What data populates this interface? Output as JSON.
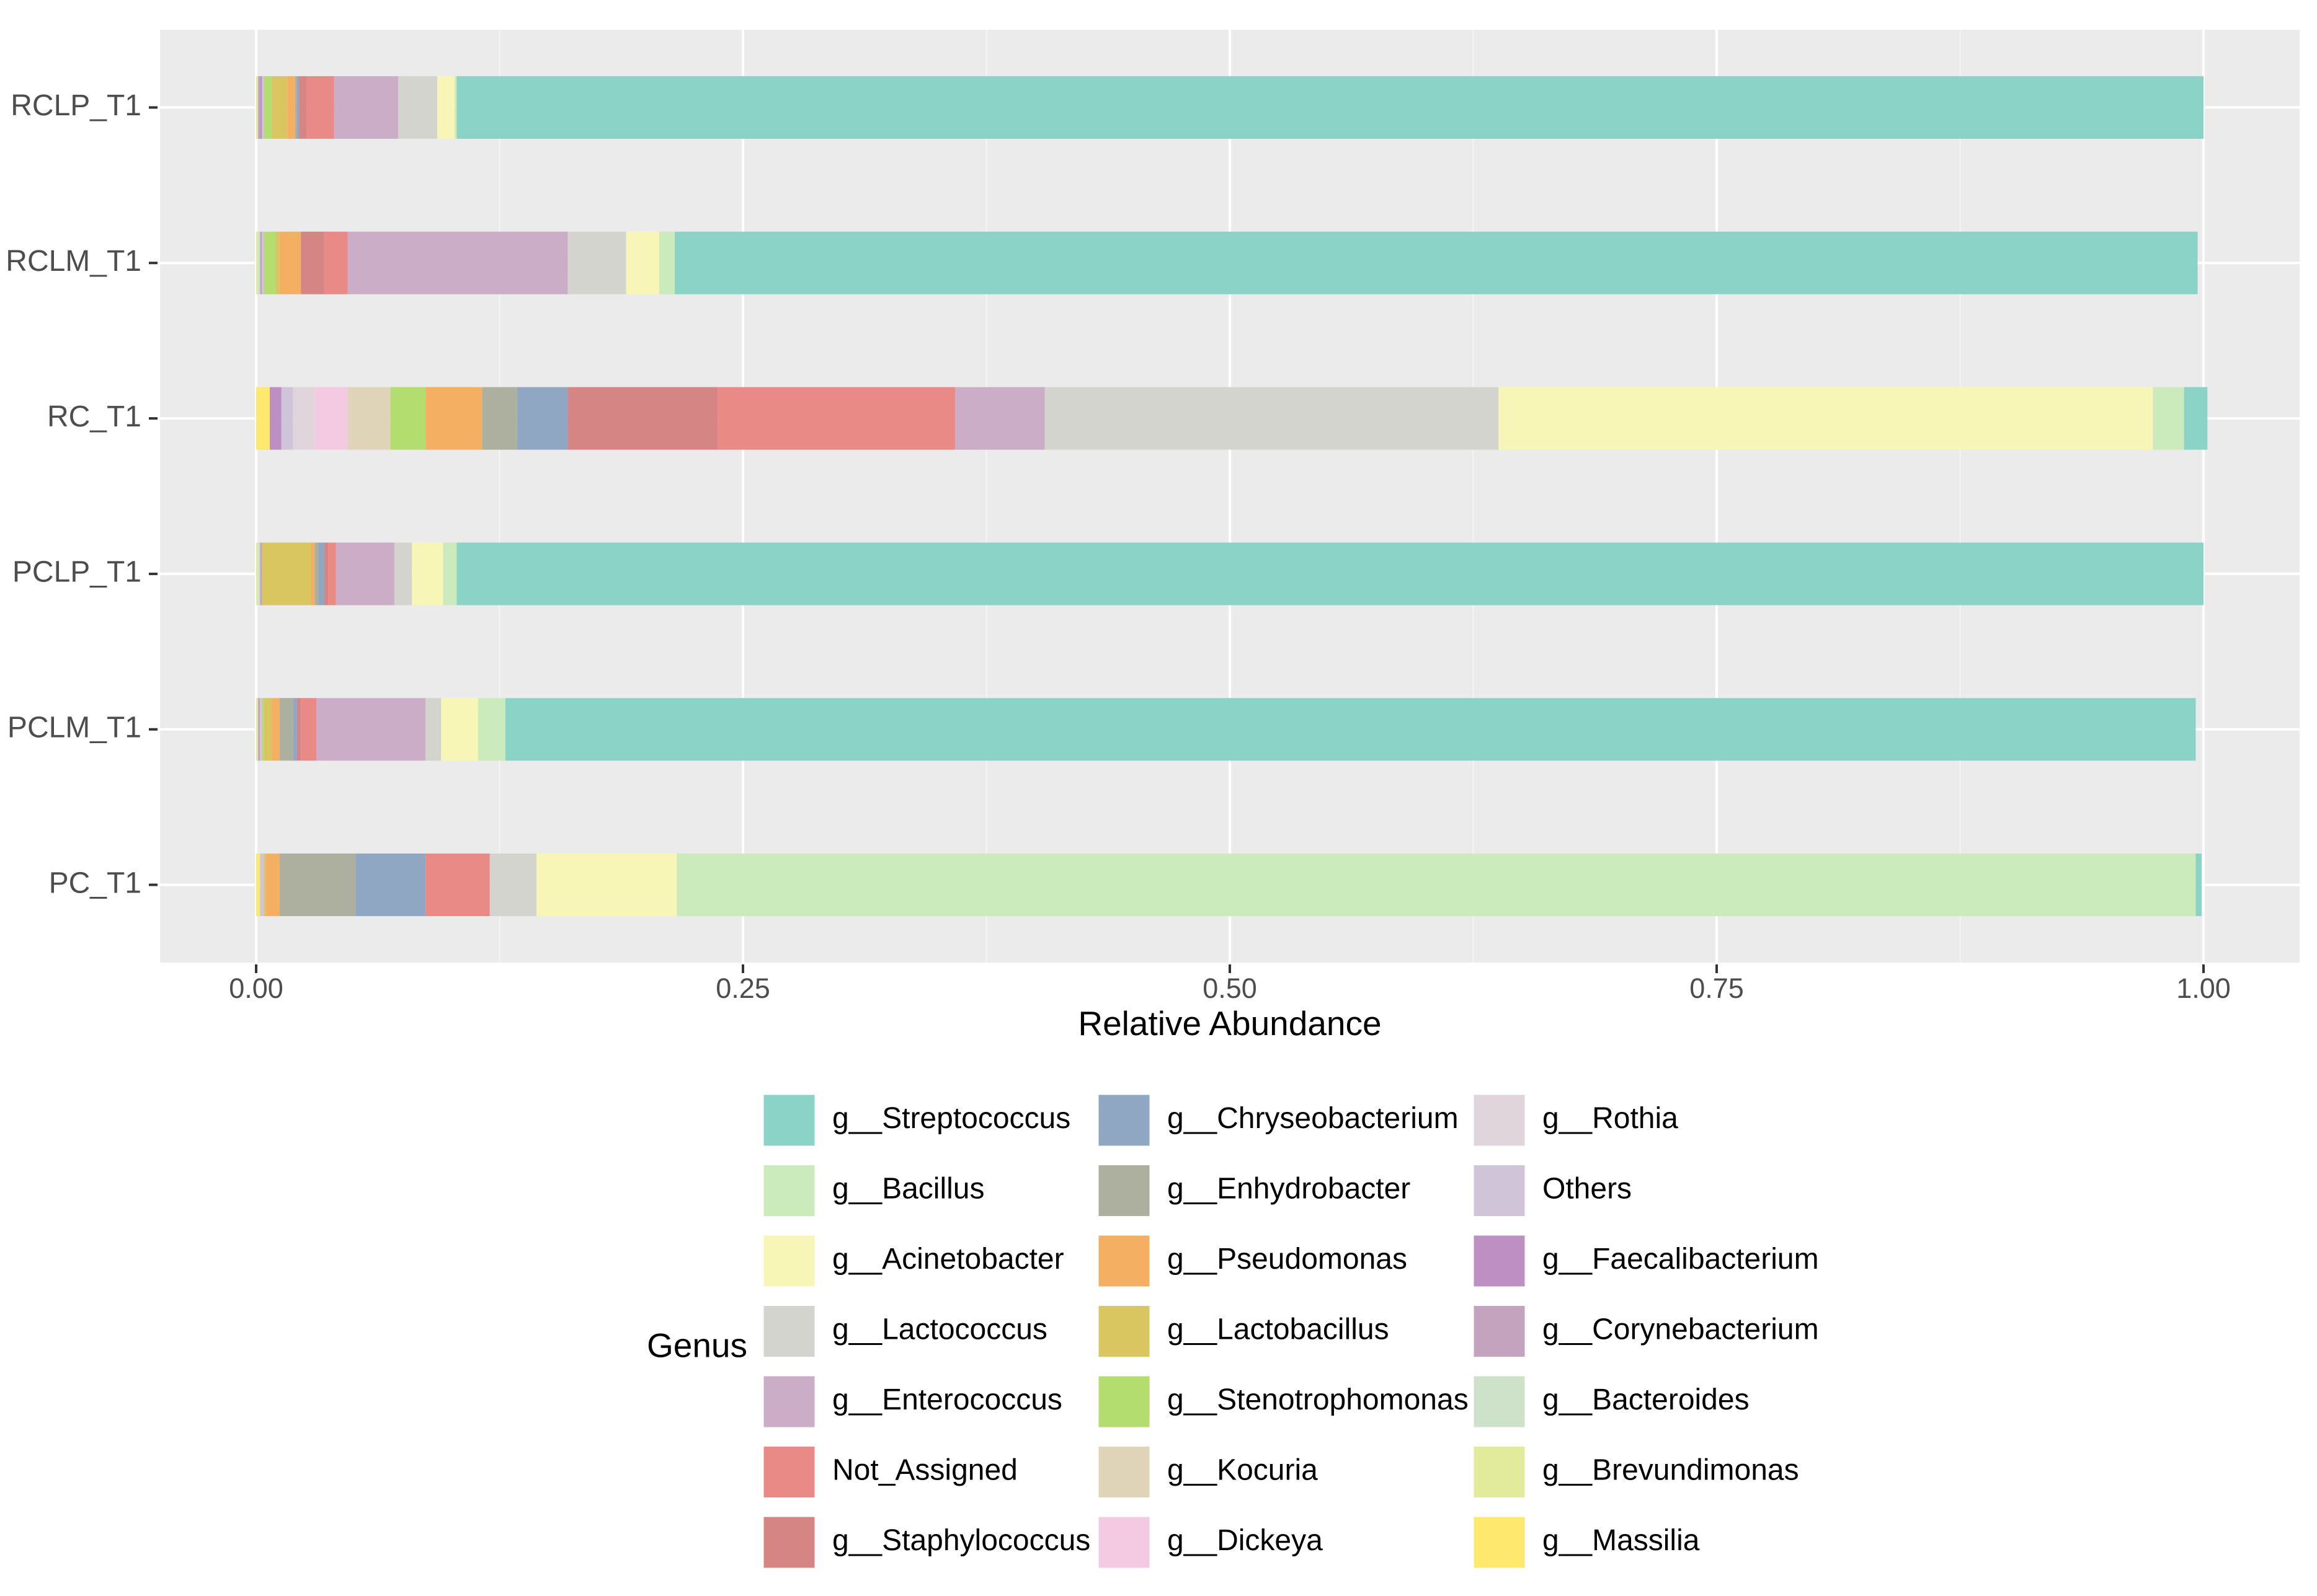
{
  "chart_data": {
    "type": "bar",
    "orientation": "horizontal",
    "stacked": true,
    "xlabel": "Relative Abundance",
    "ylabel": "",
    "xlim": [
      -0.05,
      1.05
    ],
    "xticks": [
      0,
      0.25,
      0.5,
      0.75,
      1
    ],
    "xtick_labels": [
      "0.00",
      "0.25",
      "0.50",
      "0.75",
      "1.00"
    ],
    "grid": true,
    "legend_title": "Genus",
    "legend_position": "bottom",
    "categories": [
      "RCLP_T1",
      "RCLM_T1",
      "RC_T1",
      "PCLP_T1",
      "PCLM_T1",
      "PC_T1"
    ],
    "series": [
      {
        "name": "g__Massilia",
        "color": "#FFE86E",
        "values": [
          0,
          0,
          0.007,
          0,
          0,
          0.002
        ]
      },
      {
        "name": "g__Brevundimonas",
        "color": "#E2EB9C",
        "values": [
          0.001,
          0.001,
          0,
          0.001,
          0.001,
          0
        ]
      },
      {
        "name": "g__Bacteroides",
        "color": "#CDE2C8",
        "values": [
          0,
          0.001,
          0,
          0.001,
          0,
          0
        ]
      },
      {
        "name": "g__Corynebacterium",
        "color": "#C3A3BE",
        "values": [
          0.001,
          0.001,
          0,
          0.001,
          0.001,
          0
        ]
      },
      {
        "name": "g__Faecalibacterium",
        "color": "#BE8FC2",
        "values": [
          0.001,
          0,
          0.006,
          0,
          0,
          0
        ]
      },
      {
        "name": "Others",
        "color": "#D0C4D8",
        "values": [
          0.001,
          0.001,
          0.006,
          0,
          0.001,
          0.002
        ]
      },
      {
        "name": "g__Rothia",
        "color": "#E1D5DC",
        "values": [
          0,
          0,
          0.011,
          0,
          0,
          0
        ]
      },
      {
        "name": "g__Dickeya",
        "color": "#F4CAE2",
        "values": [
          0,
          0,
          0.017,
          0,
          0,
          0
        ]
      },
      {
        "name": "g__Kocuria",
        "color": "#E0D4B8",
        "values": [
          0,
          0,
          0.022,
          0,
          0,
          0
        ]
      },
      {
        "name": "g__Stenotrophomonas",
        "color": "#B4DD70",
        "values": [
          0.004,
          0.006,
          0.018,
          0,
          0.001,
          0
        ]
      },
      {
        "name": "g__Lactobacillus",
        "color": "#DAC660",
        "values": [
          0.008,
          0.002,
          0,
          0.025,
          0.004,
          0.001
        ]
      },
      {
        "name": "g__Pseudomonas",
        "color": "#F5AF62",
        "values": [
          0.004,
          0.011,
          0.029,
          0.002,
          0.004,
          0.007
        ]
      },
      {
        "name": "g__Enhydrobacter",
        "color": "#ADB09F",
        "values": [
          0.001,
          0,
          0.018,
          0.002,
          0.007,
          0.039
        ]
      },
      {
        "name": "g__Chryseobacterium",
        "color": "#90A7C4",
        "values": [
          0.001,
          0,
          0.026,
          0.003,
          0.002,
          0.036
        ]
      },
      {
        "name": "g__Staphylococcus",
        "color": "#D68585",
        "values": [
          0.004,
          0.012,
          0.077,
          0.002,
          0.002,
          0
        ]
      },
      {
        "name": "Not_Assigned",
        "color": "#E98A87",
        "values": [
          0.014,
          0.012,
          0.122,
          0.004,
          0.008,
          0.033
        ]
      },
      {
        "name": "g__Enterococcus",
        "color": "#CBADC7",
        "values": [
          0.033,
          0.113,
          0.046,
          0.03,
          0.056,
          0
        ]
      },
      {
        "name": "g__Lactococcus",
        "color": "#D4D4CF",
        "values": [
          0.02,
          0.03,
          0.233,
          0.009,
          0.008,
          0.024
        ]
      },
      {
        "name": "g__Acinetobacter",
        "color": "#F7F6B7",
        "values": [
          0.009,
          0.017,
          0.336,
          0.016,
          0.019,
          0.072
        ]
      },
      {
        "name": "g__Bacillus",
        "color": "#CBEBBC",
        "values": [
          0.001,
          0.008,
          0.016,
          0.007,
          0.014,
          0.78
        ]
      },
      {
        "name": "g__Streptococcus",
        "color": "#8BD3C7",
        "values": [
          0.897,
          0.782,
          0.012,
          0.897,
          0.868,
          0.003
        ]
      }
    ],
    "legend_columns": [
      [
        "g__Streptococcus",
        "g__Bacillus",
        "g__Acinetobacter",
        "g__Lactococcus",
        "g__Enterococcus",
        "Not_Assigned",
        "g__Staphylococcus"
      ],
      [
        "g__Chryseobacterium",
        "g__Enhydrobacter",
        "g__Pseudomonas",
        "g__Lactobacillus",
        "g__Stenotrophomonas",
        "g__Kocuria",
        "g__Dickeya"
      ],
      [
        "g__Rothia",
        "Others",
        "g__Faecalibacterium",
        "g__Corynebacterium",
        "g__Bacteroides",
        "g__Brevundimonas",
        "g__Massilia"
      ]
    ]
  }
}
